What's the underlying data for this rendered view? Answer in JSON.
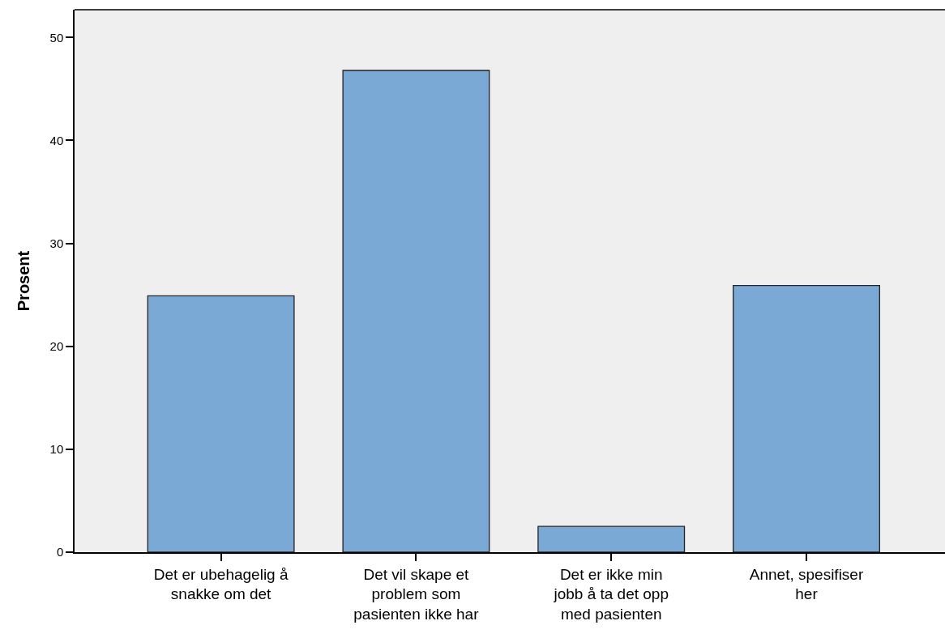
{
  "chart_data": {
    "type": "bar",
    "ylabel": "Prosent",
    "categories": [
      "Det er ubehagelig å snakke om det",
      "Det vil skape et problem som pasienten ikke har",
      "Det er ikke min jobb å ta det opp med pasienten",
      "Annet, spesifiser her"
    ],
    "values": [
      24.9,
      46.8,
      2.5,
      25.9
    ],
    "color": "#7ba9d6",
    "ylim": [
      0,
      52.7
    ],
    "yticks": [
      0,
      10,
      20,
      30,
      40,
      50
    ],
    "grid": false
  }
}
